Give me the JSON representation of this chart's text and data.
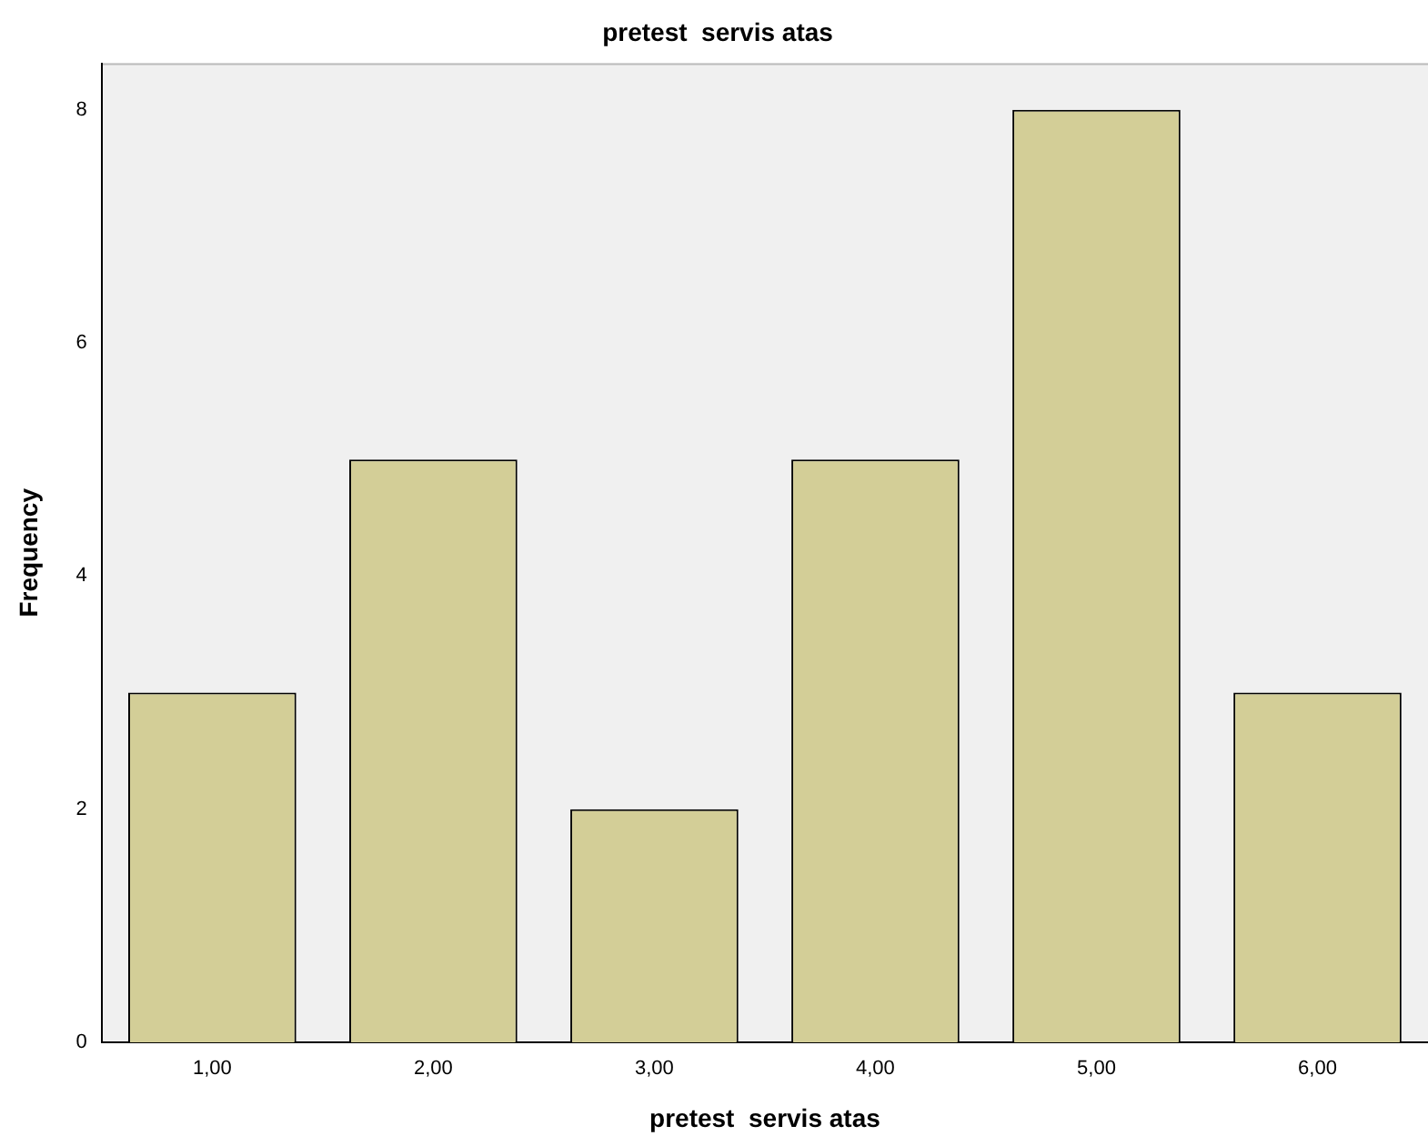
{
  "chart_data": {
    "type": "bar",
    "title": "pretest  servis atas",
    "xlabel": "pretest  servis atas",
    "ylabel": "Frequency",
    "categories": [
      "1,00",
      "2,00",
      "3,00",
      "4,00",
      "5,00",
      "6,00"
    ],
    "values": [
      3,
      5,
      2,
      5,
      8,
      3
    ],
    "color": "#d3ce97",
    "ylim": [
      0,
      8.4
    ],
    "yticks": [
      0,
      2,
      4,
      6,
      8
    ]
  }
}
